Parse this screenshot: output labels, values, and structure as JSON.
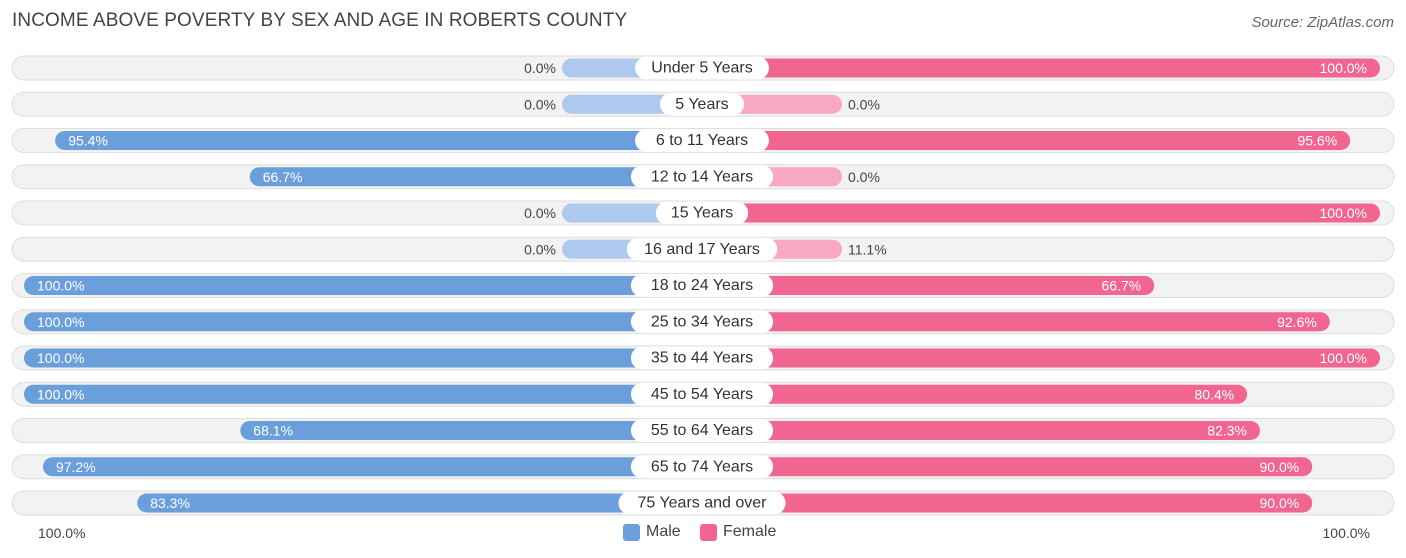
{
  "title": "INCOME ABOVE POVERTY BY SEX AND AGE IN ROBERTS COUNTY",
  "source": "Source: ZipAtlas.com",
  "legend": {
    "male": "Male",
    "female": "Female"
  },
  "axis": {
    "left_label": "100.0%",
    "right_label": "100.0%"
  },
  "colors": {
    "male_strong": "#6a9fdc",
    "male_light": "#adc9ee",
    "female_strong": "#f06690",
    "female_light": "#f8a8c2",
    "row_bg": "#f2f2f2",
    "row_border": "#dedede"
  },
  "chart_data": {
    "type": "bar",
    "orientation": "diverging-horizontal",
    "xlim": [
      -100,
      100
    ],
    "categories": [
      "Under 5 Years",
      "5 Years",
      "6 to 11 Years",
      "12 to 14 Years",
      "15 Years",
      "16 and 17 Years",
      "18 to 24 Years",
      "25 to 34 Years",
      "35 to 44 Years",
      "45 to 54 Years",
      "55 to 64 Years",
      "65 to 74 Years",
      "75 Years and over"
    ],
    "series": [
      {
        "name": "Male",
        "values": [
          0.0,
          0.0,
          95.4,
          66.7,
          0.0,
          0.0,
          100.0,
          100.0,
          100.0,
          100.0,
          68.1,
          97.2,
          83.3
        ],
        "labels": [
          "0.0%",
          "0.0%",
          "95.4%",
          "66.7%",
          "0.0%",
          "0.0%",
          "100.0%",
          "100.0%",
          "100.0%",
          "100.0%",
          "68.1%",
          "97.2%",
          "83.3%"
        ]
      },
      {
        "name": "Female",
        "values": [
          100.0,
          0.0,
          95.6,
          0.0,
          100.0,
          11.1,
          66.7,
          92.6,
          100.0,
          80.4,
          82.3,
          90.0,
          90.0
        ],
        "labels": [
          "100.0%",
          "0.0%",
          "95.6%",
          "0.0%",
          "100.0%",
          "11.1%",
          "66.7%",
          "92.6%",
          "100.0%",
          "80.4%",
          "82.3%",
          "90.0%",
          "90.0%"
        ]
      }
    ],
    "legend_position": "bottom-center"
  }
}
